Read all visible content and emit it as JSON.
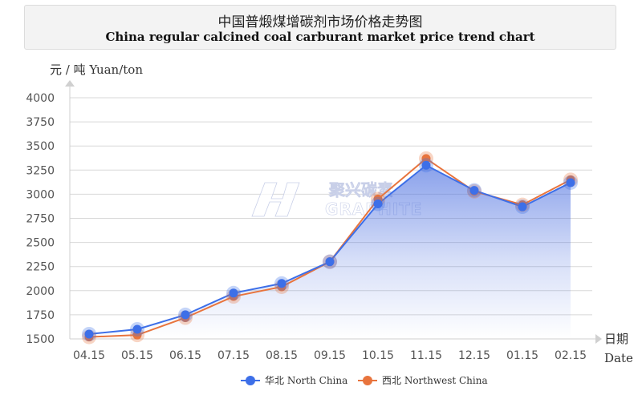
{
  "header": {
    "title_cn": "中国普煅煤增碳剂市场价格走势图",
    "title_en": "China regular calcined coal carburant market price trend chart"
  },
  "watermark": {
    "brand_cn": "聚兴碳素",
    "brand_en": "GRAPHITE"
  },
  "colors": {
    "north": "#3d6fe8",
    "northwest": "#e8743d",
    "area_top": "#4a6ee0",
    "grid": "#d8d8d8",
    "axis_text": "#555555"
  },
  "chart_data": {
    "type": "line",
    "title": "中国普煅煤增碳剂市场价格走势图",
    "subtitle": "China regular calcined coal carburant market price trend chart",
    "ylabel": "元 / 吨 Yuan/ton",
    "xlabel_cn": "日期",
    "xlabel_en": "Date",
    "categories": [
      "04.15",
      "05.15",
      "06.15",
      "07.15",
      "08.15",
      "09.15",
      "10.15",
      "11.15",
      "12.15",
      "01.15",
      "02.15"
    ],
    "yticks": [
      1500,
      1750,
      2000,
      2250,
      2500,
      2750,
      3000,
      3250,
      3500,
      3750,
      4000
    ],
    "ylim": [
      1500,
      4000
    ],
    "grid": true,
    "legend_position": "bottom",
    "series": [
      {
        "name": "华北 North China",
        "values": [
          1550,
          1600,
          1750,
          1975,
          2075,
          2300,
          2900,
          3300,
          3040,
          2870,
          3120
        ]
      },
      {
        "name": "西北 Northwest China",
        "values": [
          1520,
          1540,
          1720,
          1940,
          2040,
          2300,
          2950,
          3370,
          3030,
          2890,
          3150
        ]
      }
    ]
  }
}
